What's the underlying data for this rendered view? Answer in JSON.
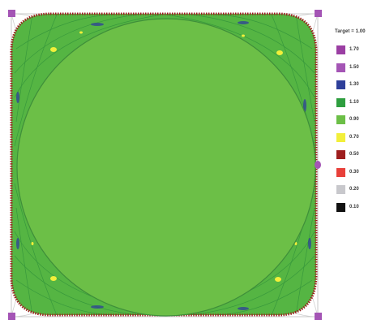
{
  "legend": {
    "title": "Target = 1.00",
    "items": [
      {
        "label": "1.70",
        "color": "#9b3fa3"
      },
      {
        "label": "1.50",
        "color": "#a455b5"
      },
      {
        "label": "1.30",
        "color": "#2e3f9a"
      },
      {
        "label": "1.10",
        "color": "#2e9e3f"
      },
      {
        "label": "0.90",
        "color": "#6cbf47"
      },
      {
        "label": "0.70",
        "color": "#f2ef3a"
      },
      {
        "label": "0.50",
        "color": "#9e1e1e"
      },
      {
        "label": "0.30",
        "color": "#e8403a"
      },
      {
        "label": "0.20",
        "color": "#c8c8cc"
      },
      {
        "label": "0.10",
        "color": "#111111"
      }
    ]
  },
  "colors": {
    "inner_fill": "#6cbf47",
    "corner_fill": "#55b543",
    "outline_dots": "#9e1e1e",
    "selection_handle": "#a455b5",
    "frame_line": "#b8b8b8"
  }
}
